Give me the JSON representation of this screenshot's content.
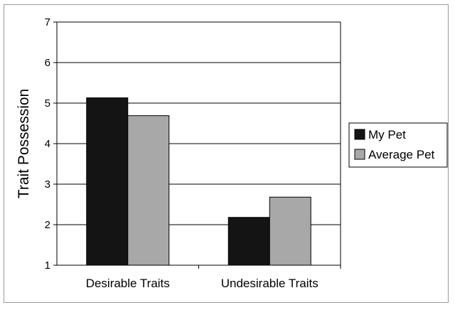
{
  "chart_data": {
    "type": "bar",
    "title": "",
    "xlabel": "",
    "ylabel": "Trait Possession",
    "categories": [
      "Desirable Traits",
      "Undesirable Traits"
    ],
    "series": [
      {
        "name": "My Pet",
        "values": [
          5.13,
          2.18
        ],
        "color": "#141414"
      },
      {
        "name": "Average Pet",
        "values": [
          4.69,
          2.68
        ],
        "color": "#a8a8a8"
      }
    ],
    "ylim": [
      1,
      7
    ],
    "yticks": [
      1,
      2,
      3,
      4,
      5,
      6,
      7
    ],
    "grid": true,
    "legend": "right"
  }
}
